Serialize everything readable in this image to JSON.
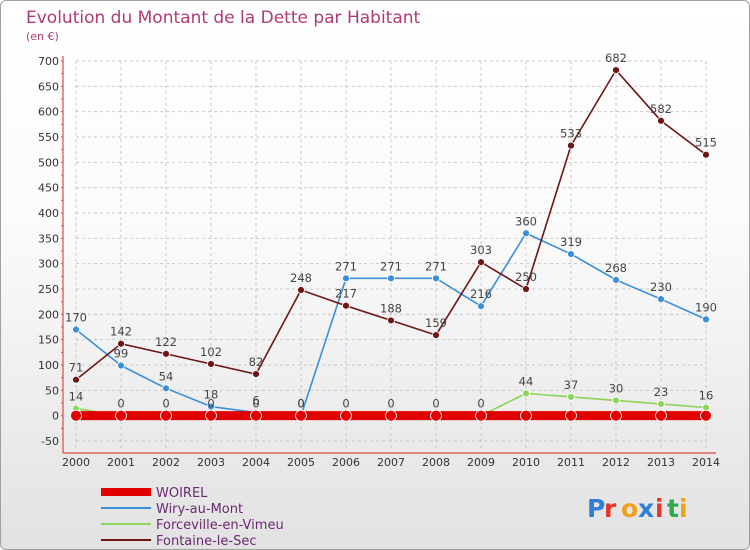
{
  "header": {
    "title": "Evolution du Montant de la Dette par Habitant",
    "subtitle": "(en €)"
  },
  "brand": {
    "letters": [
      "P",
      "r",
      "o",
      "x",
      "i",
      "t",
      "i"
    ],
    "colors": [
      "#2f7fd6",
      "#e5352b",
      "#f0a01a",
      "#2f7fd6",
      "#e5352b",
      "#2fa84f",
      "#f0a01a"
    ]
  },
  "chart_data": {
    "type": "line",
    "title": "Evolution du Montant de la Dette par Habitant",
    "ylabel": "(en €)",
    "xlabel": "",
    "x": [
      2000,
      2001,
      2002,
      2003,
      2004,
      2005,
      2006,
      2007,
      2008,
      2009,
      2010,
      2011,
      2012,
      2013,
      2014
    ],
    "ylim": [
      -50,
      700
    ],
    "yticks": [
      -50,
      0,
      50,
      100,
      150,
      200,
      250,
      300,
      350,
      400,
      450,
      500,
      550,
      600,
      650,
      700
    ],
    "grid": true,
    "legend": "bottom-left",
    "series": [
      {
        "name": "WOIREL",
        "color": "#e00000",
        "values": [
          0,
          0,
          0,
          0,
          0,
          0,
          0,
          0,
          0,
          0,
          0,
          0,
          0,
          0,
          0
        ]
      },
      {
        "name": "Wiry-au-Mont",
        "color": "#3b8fd8",
        "values": [
          170,
          99,
          54,
          18,
          6,
          0,
          271,
          271,
          271,
          216,
          360,
          319,
          268,
          230,
          190
        ]
      },
      {
        "name": "Forceville-en-Vimeu",
        "color": "#8ed455",
        "values": [
          14,
          0,
          0,
          0,
          0,
          0,
          0,
          0,
          0,
          0,
          44,
          37,
          30,
          23,
          16
        ]
      },
      {
        "name": "Fontaine-le-Sec",
        "color": "#6e1515",
        "values": [
          71,
          142,
          122,
          102,
          82,
          248,
          217,
          188,
          159,
          303,
          250,
          533,
          682,
          582,
          515
        ]
      }
    ]
  }
}
